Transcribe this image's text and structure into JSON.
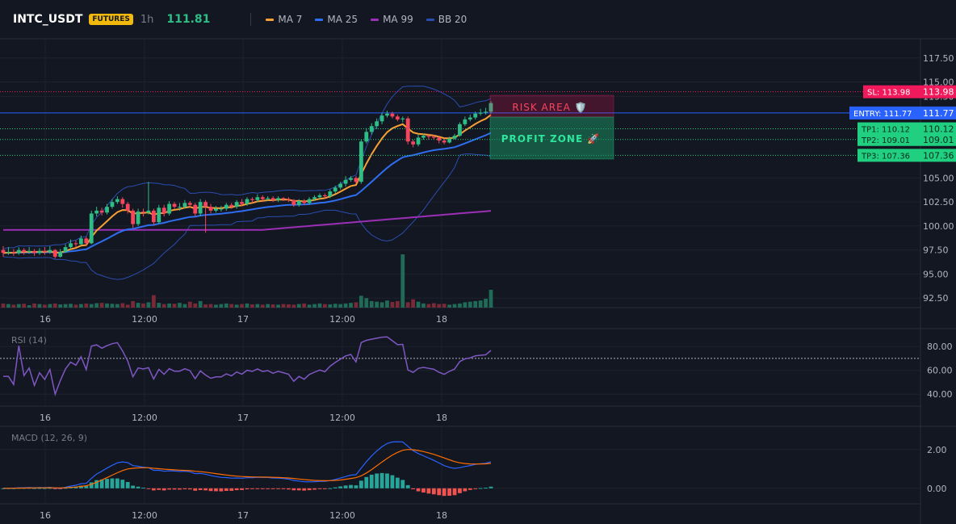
{
  "header": {
    "symbol": "INTC_USDT",
    "badge": "FUTURES",
    "timeframe": "1h",
    "price": "111.81"
  },
  "legend": [
    {
      "label": "MA 7",
      "color": "#f7a035"
    },
    {
      "label": "MA 25",
      "color": "#2f6ef0"
    },
    {
      "label": "MA 99",
      "color": "#9b2fb5"
    },
    {
      "label": "BB 20",
      "color": "#2a4dae"
    }
  ],
  "colors": {
    "up": "#2ebd85",
    "down": "#f6465d",
    "background": "#131722",
    "grid": "#1e222d",
    "sl": "#f0195b",
    "entry": "#2962ff",
    "tp": "#20d080"
  },
  "price_axis": {
    "ticks": [
      "117.50",
      "115.00",
      "113.50",
      "105.00",
      "102.50",
      "100.00",
      "97.50",
      "95.00",
      "92.50"
    ]
  },
  "time_axis": {
    "labels": [
      "16",
      "12:00",
      "17",
      "12:00",
      "18"
    ]
  },
  "levels": {
    "sl": {
      "label": "SL: 113.98",
      "price": "113.98"
    },
    "entry": {
      "label": "ENTRY: 111.77",
      "price": "111.77"
    },
    "tp": [
      {
        "label": "TP1: 110.12",
        "price": "110.12"
      },
      {
        "label": "TP2: 109.01",
        "price": "109.01"
      },
      {
        "label": "TP3: 107.36",
        "price": "107.36"
      }
    ]
  },
  "zones": {
    "risk": {
      "label": "RISK AREA 🛡️"
    },
    "profit": {
      "label": "PROFIT ZONE 🚀"
    }
  },
  "rsi": {
    "title": "RSI (14)",
    "ticks": [
      "80.00",
      "60.00",
      "40.00"
    ],
    "overbought": 70
  },
  "macd": {
    "title": "MACD (12, 26, 9)",
    "ticks": [
      "2.00",
      "0.00"
    ]
  },
  "chart_data": {
    "type": "candlestick",
    "candles": [
      [
        97.5,
        97.2,
        97.9,
        96.8
      ],
      [
        97.2,
        97.3,
        97.8,
        97.0
      ],
      [
        97.3,
        97.2,
        97.6,
        96.9
      ],
      [
        97.2,
        97.5,
        97.8,
        97.0
      ],
      [
        97.5,
        97.3,
        97.7,
        97.0
      ],
      [
        97.3,
        97.4,
        97.8,
        97.1
      ],
      [
        97.4,
        97.2,
        97.6,
        96.9
      ],
      [
        97.2,
        97.4,
        97.7,
        97.0
      ],
      [
        97.4,
        97.3,
        97.8,
        97.0
      ],
      [
        97.3,
        97.5,
        97.9,
        97.1
      ],
      [
        97.5,
        96.8,
        97.6,
        96.6
      ],
      [
        96.8,
        97.3,
        97.6,
        96.7
      ],
      [
        97.3,
        97.8,
        98.1,
        97.2
      ],
      [
        97.8,
        98.2,
        98.6,
        97.6
      ],
      [
        98.2,
        98.1,
        98.5,
        97.8
      ],
      [
        98.1,
        98.7,
        99.0,
        98.0
      ],
      [
        98.7,
        98.2,
        98.9,
        98.0
      ],
      [
        98.2,
        101.3,
        101.6,
        98.1
      ],
      [
        101.3,
        101.6,
        102.0,
        101.0
      ],
      [
        101.6,
        101.4,
        101.9,
        101.1
      ],
      [
        101.4,
        102.0,
        102.3,
        101.2
      ],
      [
        102.0,
        102.5,
        102.8,
        101.8
      ],
      [
        102.5,
        102.8,
        103.1,
        102.3
      ],
      [
        102.8,
        102.3,
        103.0,
        101.9
      ],
      [
        102.3,
        101.6,
        102.5,
        101.3
      ],
      [
        101.6,
        100.2,
        101.8,
        99.8
      ],
      [
        100.2,
        101.5,
        101.8,
        100.0
      ],
      [
        101.5,
        101.4,
        101.8,
        101.0
      ],
      [
        101.4,
        101.6,
        104.6,
        101.2
      ],
      [
        101.6,
        100.4,
        101.8,
        100.1
      ],
      [
        100.4,
        101.9,
        102.2,
        100.2
      ],
      [
        101.9,
        101.3,
        102.2,
        101.0
      ],
      [
        101.3,
        102.3,
        102.6,
        101.1
      ],
      [
        102.3,
        102.0,
        102.5,
        101.8
      ],
      [
        102.0,
        102.0,
        102.4,
        101.6
      ],
      [
        102.0,
        102.4,
        102.7,
        101.8
      ],
      [
        102.4,
        102.2,
        102.6,
        101.9
      ],
      [
        102.2,
        101.3,
        102.4,
        101.0
      ],
      [
        101.3,
        102.5,
        102.8,
        101.0
      ],
      [
        102.5,
        102.0,
        102.7,
        99.3
      ],
      [
        102.0,
        101.6,
        102.3,
        101.3
      ],
      [
        101.6,
        101.8,
        102.1,
        101.4
      ],
      [
        101.8,
        101.8,
        102.1,
        101.5
      ],
      [
        101.8,
        102.2,
        102.4,
        101.6
      ],
      [
        102.2,
        102.0,
        102.4,
        101.8
      ],
      [
        102.0,
        102.5,
        102.7,
        101.8
      ],
      [
        102.5,
        102.3,
        102.8,
        102.1
      ],
      [
        102.3,
        102.8,
        103.0,
        102.1
      ],
      [
        102.8,
        102.7,
        103.0,
        102.4
      ],
      [
        102.7,
        103.0,
        103.3,
        102.5
      ],
      [
        103.0,
        102.8,
        103.2,
        102.6
      ],
      [
        102.8,
        102.9,
        103.1,
        102.6
      ],
      [
        102.9,
        102.7,
        103.1,
        102.5
      ],
      [
        102.7,
        102.9,
        103.1,
        102.5
      ],
      [
        102.9,
        102.8,
        103.0,
        102.6
      ],
      [
        102.8,
        102.7,
        103.0,
        102.5
      ],
      [
        102.7,
        102.2,
        102.8,
        102.0
      ],
      [
        102.2,
        102.6,
        102.8,
        102.0
      ],
      [
        102.6,
        102.4,
        102.8,
        102.2
      ],
      [
        102.4,
        102.8,
        103.0,
        102.2
      ],
      [
        102.8,
        103.0,
        103.2,
        102.6
      ],
      [
        103.0,
        103.2,
        103.4,
        102.8
      ],
      [
        103.2,
        103.1,
        103.4,
        102.9
      ],
      [
        103.1,
        103.6,
        103.8,
        102.9
      ],
      [
        103.6,
        104.0,
        104.2,
        103.4
      ],
      [
        104.0,
        104.4,
        104.6,
        103.8
      ],
      [
        104.4,
        104.8,
        105.2,
        104.1
      ],
      [
        104.8,
        105.0,
        105.2,
        104.6
      ],
      [
        105.0,
        104.6,
        105.2,
        104.4
      ],
      [
        104.6,
        108.8,
        109.0,
        104.4
      ],
      [
        108.8,
        109.8,
        110.2,
        108.6
      ],
      [
        109.8,
        110.4,
        110.7,
        109.5
      ],
      [
        110.4,
        110.9,
        111.2,
        110.1
      ],
      [
        110.9,
        111.5,
        111.8,
        110.6
      ],
      [
        111.5,
        111.7,
        112.0,
        111.3
      ],
      [
        111.7,
        111.4,
        111.9,
        111.2
      ],
      [
        111.4,
        111.1,
        111.6,
        110.9
      ],
      [
        111.1,
        111.2,
        111.4,
        110.8
      ],
      [
        111.2,
        108.8,
        111.4,
        108.5
      ],
      [
        108.8,
        108.5,
        109.0,
        108.2
      ],
      [
        108.5,
        109.2,
        109.5,
        108.3
      ],
      [
        109.2,
        109.4,
        109.6,
        109.0
      ],
      [
        109.4,
        109.3,
        109.6,
        109.0
      ],
      [
        109.3,
        109.2,
        109.5,
        109.0
      ],
      [
        109.2,
        108.9,
        109.4,
        108.6
      ],
      [
        108.9,
        108.7,
        109.1,
        108.5
      ],
      [
        108.7,
        109.1,
        109.3,
        108.6
      ],
      [
        109.1,
        109.4,
        109.6,
        109.0
      ],
      [
        109.4,
        110.6,
        110.8,
        109.3
      ],
      [
        110.6,
        111.1,
        111.4,
        110.4
      ],
      [
        111.1,
        111.3,
        111.6,
        110.9
      ],
      [
        111.3,
        111.7,
        111.9,
        111.1
      ],
      [
        111.7,
        111.8,
        112.2,
        111.5
      ],
      [
        111.8,
        111.9,
        112.3,
        111.6
      ],
      [
        111.9,
        112.8,
        113.0,
        111.7
      ]
    ],
    "volumes": [
      14,
      12,
      10,
      12,
      13,
      8,
      14,
      12,
      10,
      12,
      14,
      11,
      12,
      13,
      10,
      12,
      14,
      12,
      15,
      16,
      14,
      13,
      12,
      15,
      10,
      22,
      16,
      14,
      18,
      42,
      16,
      12,
      14,
      13,
      16,
      12,
      20,
      14,
      22,
      11,
      12,
      10,
      12,
      14,
      12,
      10,
      12,
      14,
      11,
      12,
      10,
      12,
      11,
      10,
      12,
      11,
      10,
      12,
      14,
      10,
      12,
      14,
      12,
      11,
      13,
      12,
      14,
      16,
      18,
      40,
      32,
      22,
      20,
      18,
      24,
      19,
      22,
      180,
      18,
      28,
      20,
      14,
      12,
      15,
      12,
      13,
      10,
      12,
      14,
      18,
      20,
      22,
      24,
      30,
      60
    ],
    "ylim": [
      91.5,
      119.5
    ],
    "price_axis_values": [
      117.5,
      115.0,
      113.5,
      105.0,
      102.5,
      100.0,
      97.5,
      95.0,
      92.5
    ]
  }
}
